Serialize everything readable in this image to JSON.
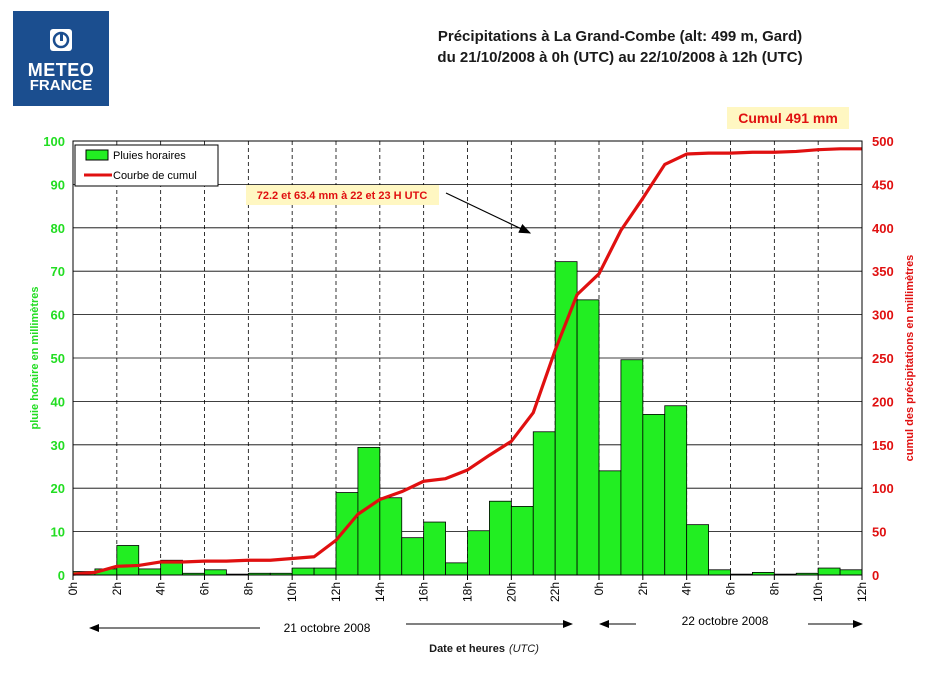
{
  "header": {
    "logo_line1": "METEO",
    "logo_line2": "FRANCE",
    "title_line1": "Précipitations à La Grand-Combe (alt: 499 m, Gard)",
    "title_line2": "du 21/10/2008 à 0h (UTC) au 22/10/2008 à 12h (UTC)",
    "cumul_label": "Cumul  491 mm"
  },
  "colors": {
    "bars": "#22ee22",
    "curve": "#e01010",
    "left_axis": "#22dd22",
    "right_axis": "#e01010"
  },
  "chart_data": {
    "type": "bar",
    "x_tick_labels": [
      "0h",
      "2h",
      "4h",
      "6h",
      "8h",
      "10h",
      "12h",
      "14h",
      "16h",
      "18h",
      "20h",
      "22h",
      "0h",
      "2h",
      "4h",
      "6h",
      "8h",
      "10h",
      "12h"
    ],
    "y_left": {
      "label": "pluie horaire en millimètres",
      "ticks": [
        0,
        10,
        20,
        30,
        40,
        50,
        60,
        70,
        80,
        90,
        100
      ],
      "ylim": [
        0,
        100
      ]
    },
    "y_right": {
      "label": "cumul des précipitations en millimètres",
      "ticks": [
        0,
        50,
        100,
        150,
        200,
        250,
        300,
        350,
        400,
        450,
        500
      ],
      "ylim": [
        0,
        500
      ]
    },
    "xlabel": "Date et heures",
    "xlabel_unit": "(UTC)",
    "date_labels": [
      "21 octobre 2008",
      "22 octobre 2008"
    ],
    "legend": {
      "position": "top-left",
      "items": [
        "Pluies horaires",
        "Courbe de cumul"
      ]
    },
    "annotation": "72.2 et 63.4 mm à 22 et 23 H UTC",
    "grid": true,
    "series": [
      {
        "name": "Pluies horaires",
        "type": "bar",
        "values": [
          0.8,
          1.4,
          6.8,
          1.4,
          3.4,
          0.4,
          1.2,
          0.2,
          0.4,
          0.4,
          1.6,
          1.6,
          19.0,
          29.4,
          17.8,
          8.6,
          12.2,
          2.8,
          10.2,
          17.0,
          15.8,
          33.0,
          72.2,
          63.4,
          24.0,
          49.6,
          37.0,
          39.0,
          11.6,
          1.2,
          0.2,
          0.6,
          0.2,
          0.4,
          1.6,
          1.2,
          0.0
        ]
      },
      {
        "name": "Courbe de cumul",
        "type": "line",
        "x": [
          0,
          1,
          2,
          3,
          4,
          5,
          6,
          7,
          8,
          9,
          10,
          11,
          12,
          13,
          14,
          15,
          16,
          17,
          18,
          19,
          20,
          21,
          22,
          23,
          24,
          25,
          26,
          27,
          28,
          29,
          30,
          31,
          32,
          33,
          34,
          35,
          36
        ],
        "values": [
          1,
          3,
          10,
          11,
          15,
          15,
          16,
          16,
          17,
          17,
          19,
          21,
          40,
          70,
          87,
          96,
          108,
          111,
          121,
          138,
          154,
          187,
          259,
          323,
          347,
          397,
          434,
          473,
          485,
          486,
          486,
          487,
          487,
          488,
          490,
          491,
          491
        ]
      }
    ]
  }
}
